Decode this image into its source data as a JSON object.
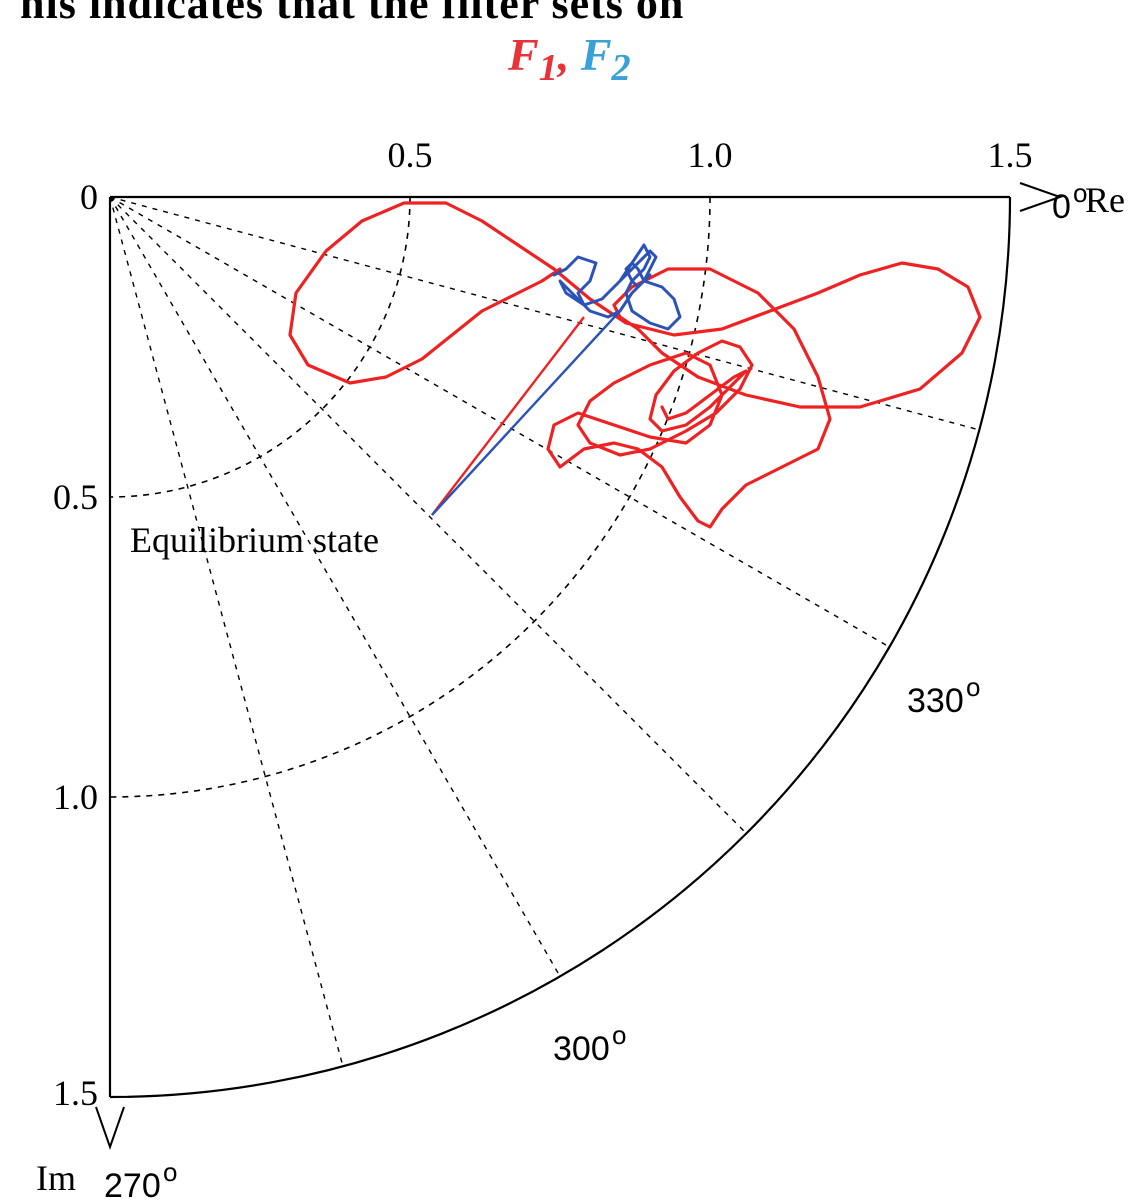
{
  "header_fragment": "his indicates that the filter sets on",
  "title": {
    "f1": "F",
    "f1_sub": "1",
    "sep": ", ",
    "f2": "F",
    "f2_sub": "2"
  },
  "colors": {
    "f1": "#e8323a",
    "f2": "#3aa0d8",
    "curve_red": "#ee2222",
    "curve_blue": "#2a52b8"
  },
  "chart_data": {
    "type": "scatter",
    "coordinate_system": "polar",
    "sector_deg": [
      270,
      360
    ],
    "rlim": [
      0,
      1.5
    ],
    "grid": true,
    "axis_labels": {
      "x": "Re",
      "y": "Im"
    },
    "x_ticks": [
      "0.5",
      "1.0",
      "1.5"
    ],
    "y_ticks": [
      "0",
      "0.5",
      "1.0",
      "1.5"
    ],
    "angle_labels": [
      {
        "deg": 0,
        "text": "0"
      },
      {
        "deg": 330,
        "text": "330"
      },
      {
        "deg": 300,
        "text": "300"
      },
      {
        "deg": 270,
        "text": "270"
      }
    ],
    "degree_symbol": "o",
    "annotation": {
      "text": "Equilibrium state",
      "f1_point": [
        0.79,
        -0.2
      ],
      "f2_point": [
        0.85,
        -0.19
      ]
    },
    "series": [
      {
        "name": "F1",
        "color": "#ee2222",
        "x": [
          0.75,
          0.72,
          0.68,
          0.62,
          0.57,
          0.52,
          0.46,
          0.4,
          0.33,
          0.3,
          0.31,
          0.36,
          0.42,
          0.49,
          0.56,
          0.62,
          0.68,
          0.74,
          0.8,
          0.86,
          0.94,
          1.02,
          1.1,
          1.18,
          1.25,
          1.32,
          1.38,
          1.43,
          1.45,
          1.42,
          1.35,
          1.25,
          1.15,
          1.06,
          0.98,
          0.92,
          0.88,
          0.85,
          0.84,
          0.87,
          0.93,
          1.0,
          1.08,
          1.14,
          1.18,
          1.2,
          1.18,
          1.12,
          1.06,
          1.02,
          1.0,
          0.98,
          0.95,
          0.92,
          0.88,
          0.84,
          0.79,
          0.75,
          0.73,
          0.74,
          0.78,
          0.84,
          0.9,
          0.96,
          1.0,
          1.02,
          1.0,
          0.96,
          0.9,
          0.84,
          0.8,
          0.78,
          0.8,
          0.85,
          0.9,
          0.96,
          1.01,
          1.05,
          1.07,
          1.05,
          1.02,
          0.98,
          0.94,
          0.91,
          0.9,
          0.92,
          0.96,
          1.0,
          1.04,
          1.06,
          1.04,
          1.0,
          0.96,
          0.93,
          0.92
        ],
        "y": [
          -0.12,
          -0.14,
          -0.16,
          -0.19,
          -0.23,
          -0.27,
          -0.3,
          -0.31,
          -0.28,
          -0.23,
          -0.16,
          -0.09,
          -0.04,
          -0.01,
          -0.01,
          -0.04,
          -0.08,
          -0.12,
          -0.17,
          -0.21,
          -0.23,
          -0.22,
          -0.19,
          -0.16,
          -0.13,
          -0.11,
          -0.12,
          -0.15,
          -0.2,
          -0.26,
          -0.32,
          -0.35,
          -0.35,
          -0.33,
          -0.3,
          -0.26,
          -0.22,
          -0.2,
          -0.18,
          -0.15,
          -0.12,
          -0.12,
          -0.16,
          -0.22,
          -0.3,
          -0.37,
          -0.42,
          -0.45,
          -0.48,
          -0.52,
          -0.55,
          -0.54,
          -0.5,
          -0.45,
          -0.42,
          -0.41,
          -0.42,
          -0.45,
          -0.42,
          -0.38,
          -0.36,
          -0.38,
          -0.4,
          -0.41,
          -0.38,
          -0.33,
          -0.28,
          -0.26,
          -0.28,
          -0.31,
          -0.34,
          -0.38,
          -0.41,
          -0.43,
          -0.42,
          -0.39,
          -0.36,
          -0.32,
          -0.28,
          -0.25,
          -0.24,
          -0.26,
          -0.29,
          -0.33,
          -0.37,
          -0.39,
          -0.38,
          -0.35,
          -0.31,
          -0.29,
          -0.3,
          -0.33,
          -0.36,
          -0.37,
          -0.35
        ]
      },
      {
        "name": "F2",
        "color": "#2a52b8",
        "x": [
          0.74,
          0.76,
          0.78,
          0.81,
          0.8,
          0.78,
          0.79,
          0.82,
          0.85,
          0.87,
          0.89,
          0.9,
          0.89,
          0.87,
          0.86,
          0.87,
          0.9,
          0.93,
          0.95,
          0.94,
          0.92,
          0.89,
          0.87,
          0.85,
          0.83,
          0.8,
          0.78,
          0.76,
          0.75,
          0.76,
          0.79,
          0.82,
          0.84,
          0.86,
          0.88,
          0.9,
          0.91,
          0.9,
          0.89,
          0.88,
          0.87,
          0.86,
          0.87,
          0.88,
          0.89,
          0.9
        ],
        "y": [
          -0.13,
          -0.12,
          -0.1,
          -0.11,
          -0.14,
          -0.16,
          -0.18,
          -0.17,
          -0.14,
          -0.11,
          -0.08,
          -0.1,
          -0.12,
          -0.14,
          -0.16,
          -0.19,
          -0.21,
          -0.22,
          -0.2,
          -0.17,
          -0.15,
          -0.14,
          -0.16,
          -0.19,
          -0.2,
          -0.19,
          -0.17,
          -0.15,
          -0.14,
          -0.16,
          -0.18,
          -0.17,
          -0.15,
          -0.13,
          -0.11,
          -0.09,
          -0.1,
          -0.12,
          -0.14,
          -0.15,
          -0.14,
          -0.12,
          -0.11,
          -0.12,
          -0.14,
          -0.13
        ]
      }
    ]
  }
}
